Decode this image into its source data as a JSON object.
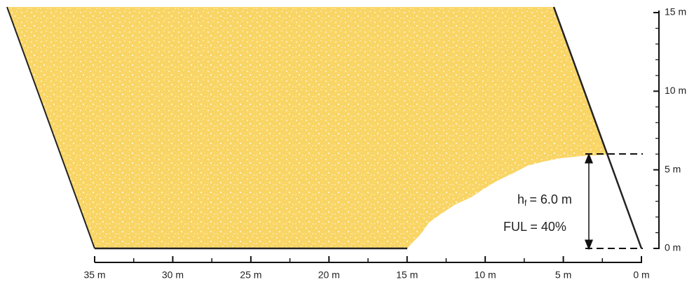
{
  "x_axis": {
    "labels": [
      "35 m",
      "30 m",
      "25 m",
      "20 m",
      "15 m",
      "10 m",
      "5 m",
      "0 m"
    ]
  },
  "y_axis": {
    "labels": [
      "0 m",
      "5 m",
      "10 m",
      "15 m"
    ]
  },
  "annotations": {
    "height": {
      "symbol": "h",
      "subscript": "f",
      "text": "= 6.0 m"
    },
    "ful": "FUL = 40%"
  }
}
